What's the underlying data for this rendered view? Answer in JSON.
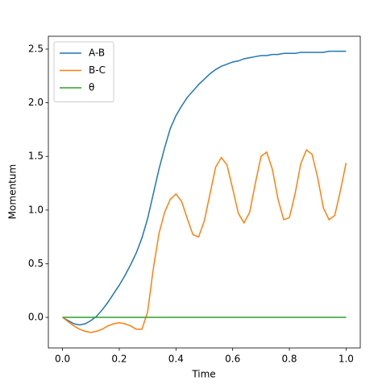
{
  "chart_data": {
    "type": "line",
    "xlabel": "Time",
    "ylabel": "Momentum",
    "x": [
      0,
      0.02,
      0.04,
      0.06,
      0.08,
      0.1,
      0.12,
      0.14,
      0.16,
      0.18,
      0.2,
      0.22,
      0.24,
      0.26,
      0.28,
      0.3,
      0.32,
      0.34,
      0.36,
      0.38,
      0.4,
      0.42,
      0.44,
      0.46,
      0.48,
      0.5,
      0.52,
      0.54,
      0.56,
      0.58,
      0.6,
      0.62,
      0.64,
      0.66,
      0.68,
      0.7,
      0.72,
      0.74,
      0.76,
      0.78,
      0.8,
      0.82,
      0.84,
      0.86,
      0.88,
      0.9,
      0.92,
      0.94,
      0.96,
      0.98,
      1.0
    ],
    "series": [
      {
        "name": "A-B",
        "color": "#1f77b4",
        "values": [
          0,
          -0.03,
          -0.06,
          -0.07,
          -0.06,
          -0.03,
          0.01,
          0.07,
          0.14,
          0.22,
          0.3,
          0.39,
          0.49,
          0.6,
          0.74,
          0.92,
          1.15,
          1.38,
          1.58,
          1.76,
          1.88,
          1.97,
          2.05,
          2.11,
          2.17,
          2.22,
          2.27,
          2.31,
          2.34,
          2.36,
          2.38,
          2.39,
          2.41,
          2.42,
          2.43,
          2.44,
          2.44,
          2.45,
          2.45,
          2.46,
          2.46,
          2.46,
          2.47,
          2.47,
          2.47,
          2.47,
          2.47,
          2.48,
          2.48,
          2.48,
          2.48
        ]
      },
      {
        "name": "B-C",
        "color": "#ff7f0e",
        "values": [
          0,
          -0.04,
          -0.08,
          -0.11,
          -0.13,
          -0.14,
          -0.13,
          -0.11,
          -0.08,
          -0.06,
          -0.05,
          -0.06,
          -0.08,
          -0.11,
          -0.11,
          0.05,
          0.45,
          0.78,
          0.98,
          1.1,
          1.15,
          1.08,
          0.92,
          0.77,
          0.75,
          0.9,
          1.15,
          1.4,
          1.49,
          1.42,
          1.2,
          0.97,
          0.88,
          0.98,
          1.25,
          1.5,
          1.54,
          1.38,
          1.1,
          0.91,
          0.93,
          1.15,
          1.43,
          1.56,
          1.52,
          1.3,
          1.02,
          0.91,
          0.95,
          1.18,
          1.44
        ]
      },
      {
        "name": "θ",
        "color": "#2ca02c",
        "values": [
          0,
          0,
          0,
          0,
          0,
          0,
          0,
          0,
          0,
          0,
          0,
          0,
          0,
          0,
          0,
          0,
          0,
          0,
          0,
          0,
          0,
          0,
          0,
          0,
          0,
          0,
          0,
          0,
          0,
          0,
          0,
          0,
          0,
          0,
          0,
          0,
          0,
          0,
          0,
          0,
          0,
          0,
          0,
          0,
          0,
          0,
          0,
          0,
          0,
          0,
          0
        ]
      }
    ],
    "xlim": [
      -0.05,
      1.05
    ],
    "xticks": [
      {
        "value": 0,
        "label": "0.0"
      },
      0.2,
      0.4,
      0.6,
      0.8,
      {
        "value": 1,
        "label": "1.0"
      }
    ],
    "ylim": [
      -0.285,
      2.62
    ],
    "yticks": [
      {
        "value": 0,
        "label": "0.0"
      },
      0.5,
      {
        "value": 1,
        "label": "1.0"
      },
      1.5,
      {
        "value": 2,
        "label": "2.0"
      },
      2.5
    ],
    "legend": "upper left"
  }
}
